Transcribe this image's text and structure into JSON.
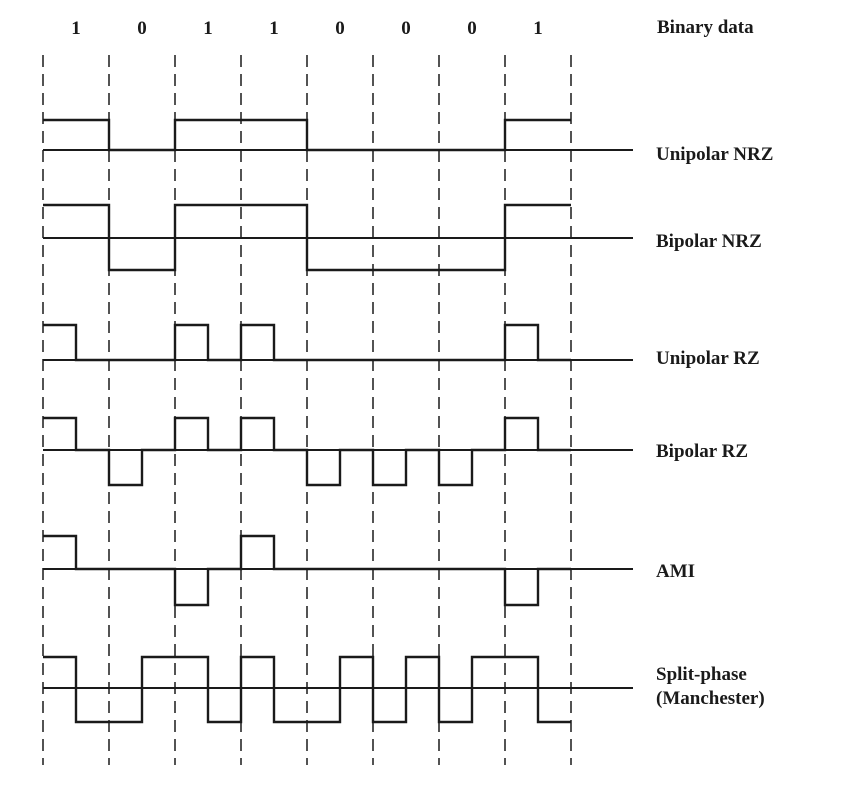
{
  "title": "Binary data",
  "bits": [
    "1",
    "0",
    "1",
    "1",
    "0",
    "0",
    "0",
    "1"
  ],
  "rows": [
    {
      "id": "unipolar-nrz",
      "label_lines": [
        "Unipolar NRZ"
      ]
    },
    {
      "id": "bipolar-nrz",
      "label_lines": [
        "Bipolar NRZ"
      ]
    },
    {
      "id": "unipolar-rz",
      "label_lines": [
        "Unipolar RZ"
      ]
    },
    {
      "id": "bipolar-rz",
      "label_lines": [
        "Bipolar RZ"
      ]
    },
    {
      "id": "ami",
      "label_lines": [
        "AMI"
      ]
    },
    {
      "id": "manchester",
      "label_lines": [
        "Split-phase",
        "(Manchester)"
      ]
    }
  ]
}
